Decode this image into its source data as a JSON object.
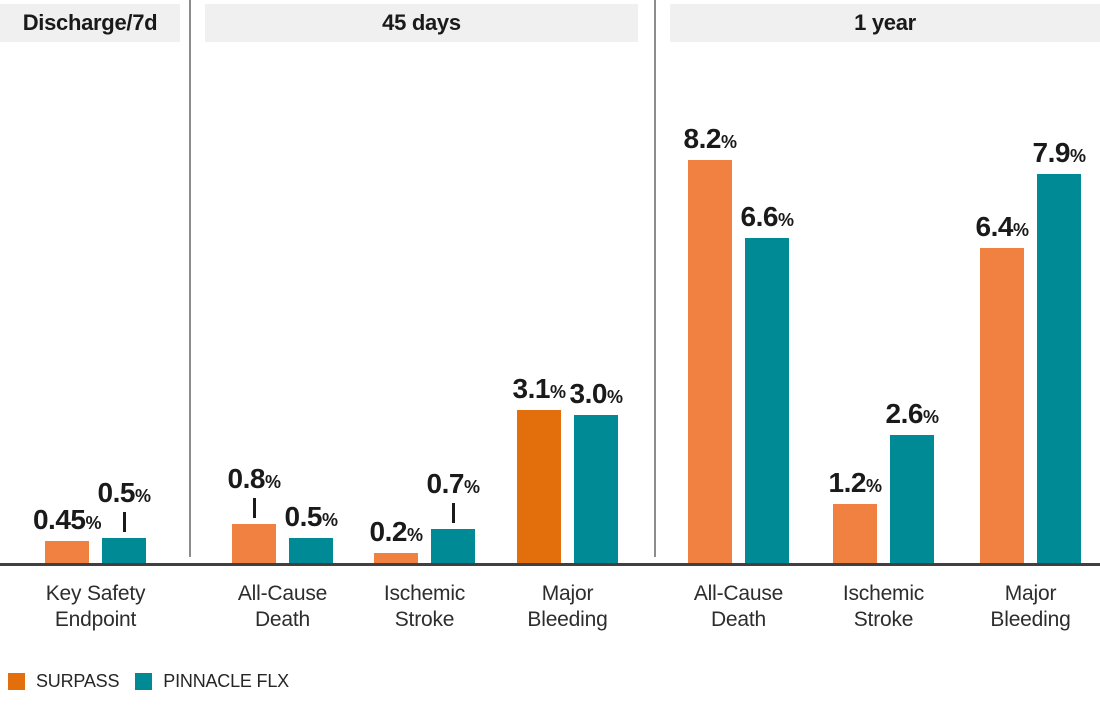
{
  "chart_data": {
    "type": "bar",
    "unit": "%",
    "ylim": [
      0,
      8.5
    ],
    "grid": false,
    "legend_position": "bottom-left",
    "series": [
      "SURPASS",
      "PINNACLE FLX"
    ],
    "sections": [
      {
        "header": "Discharge/7d",
        "groups": [
          {
            "category": [
              "Key Safety",
              "Endpoint"
            ],
            "bars": [
              {
                "series": "SURPASS",
                "value": 0.45,
                "label": "0.45",
                "leader": false,
                "emphasis": false
              },
              {
                "series": "PINNACLE FLX",
                "value": 0.5,
                "label": "0.5",
                "leader": true,
                "emphasis": false
              }
            ]
          }
        ]
      },
      {
        "header": "45 days",
        "groups": [
          {
            "category": [
              "All-Cause",
              "Death"
            ],
            "bars": [
              {
                "series": "SURPASS",
                "value": 0.8,
                "label": "0.8",
                "leader": true,
                "emphasis": false
              },
              {
                "series": "PINNACLE FLX",
                "value": 0.5,
                "label": "0.5",
                "leader": false,
                "emphasis": false
              }
            ]
          },
          {
            "category": [
              "Ischemic",
              "Stroke"
            ],
            "bars": [
              {
                "series": "SURPASS",
                "value": 0.2,
                "label": "0.2",
                "leader": false,
                "emphasis": false
              },
              {
                "series": "PINNACLE FLX",
                "value": 0.7,
                "label": "0.7",
                "leader": true,
                "emphasis": false
              }
            ]
          },
          {
            "category": [
              "Major",
              "Bleeding"
            ],
            "bars": [
              {
                "series": "SURPASS",
                "value": 3.1,
                "label": "3.1",
                "leader": false,
                "emphasis": true
              },
              {
                "series": "PINNACLE FLX",
                "value": 3.0,
                "label": "3.0",
                "leader": false,
                "emphasis": false
              }
            ]
          }
        ]
      },
      {
        "header": "1 year",
        "groups": [
          {
            "category": [
              "All-Cause",
              "Death"
            ],
            "bars": [
              {
                "series": "SURPASS",
                "value": 8.2,
                "label": "8.2",
                "leader": false,
                "emphasis": false
              },
              {
                "series": "PINNACLE FLX",
                "value": 6.6,
                "label": "6.6",
                "leader": false,
                "emphasis": false
              }
            ]
          },
          {
            "category": [
              "Ischemic",
              "Stroke"
            ],
            "bars": [
              {
                "series": "SURPASS",
                "value": 1.2,
                "label": "1.2",
                "leader": false,
                "emphasis": false
              },
              {
                "series": "PINNACLE FLX",
                "value": 2.6,
                "label": "2.6",
                "leader": false,
                "emphasis": false
              }
            ]
          },
          {
            "category": [
              "Major",
              "Bleeding"
            ],
            "bars": [
              {
                "series": "SURPASS",
                "value": 6.4,
                "label": "6.4",
                "leader": false,
                "emphasis": false
              },
              {
                "series": "PINNACLE FLX",
                "value": 7.9,
                "label": "7.9",
                "leader": false,
                "emphasis": false
              }
            ]
          }
        ]
      }
    ]
  },
  "legend": {
    "items": [
      {
        "label": "SURPASS",
        "color": "#E26E0C"
      },
      {
        "label": "PINNACLE FLX",
        "color": "#008A96"
      }
    ]
  },
  "colors": {
    "surpass": "#F08140",
    "surpass_emphasis": "#E26E0C",
    "pinnacle": "#008A96",
    "header_bg": "#F0F0F0",
    "divider": "#8C8C8C",
    "baseline": "#404040",
    "value_text": "#1A1A1A",
    "category_text": "#2D2D2D"
  }
}
